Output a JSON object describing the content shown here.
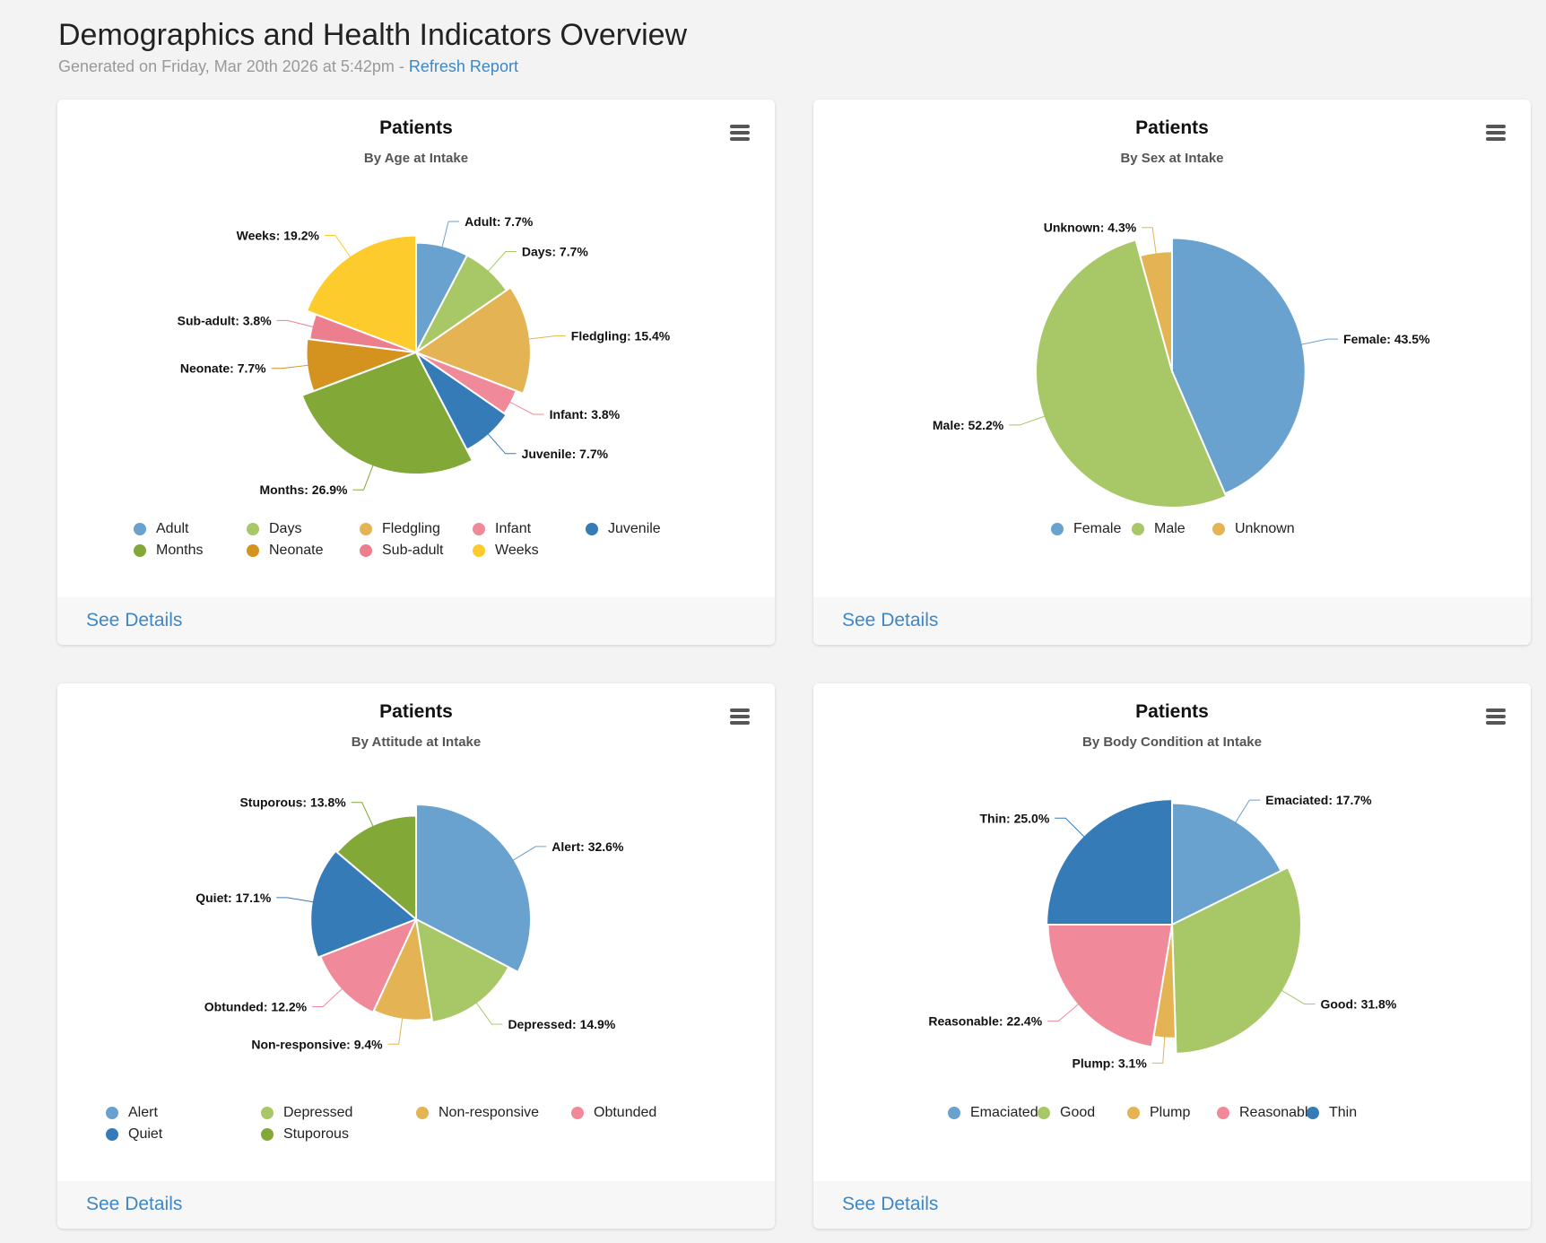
{
  "header": {
    "title": "Demographics and Health Indicators Overview",
    "generated": "Generated on Friday, Mar 20th 2026 at 5:42pm - ",
    "refresh_label": "Refresh Report"
  },
  "footer_link": "See Details",
  "chart_data": [
    {
      "type": "pie",
      "title": "Patients",
      "subtitle": "By Age at Intake",
      "legend_columns": 5,
      "legend_col_width": 126,
      "categories": [
        "Adult",
        "Days",
        "Fledgling",
        "Infant",
        "Juvenile",
        "Months",
        "Neonate",
        "Sub-adult",
        "Weeks"
      ],
      "values": [
        7.7,
        7.7,
        15.4,
        3.8,
        7.7,
        26.9,
        7.7,
        3.8,
        19.2
      ],
      "colors": [
        "#69a1cf",
        "#a8c766",
        "#e4b353",
        "#f08a9b",
        "#357bb7",
        "#82a838",
        "#d4921f",
        "#ec7f8e",
        "#fdcb2c"
      ]
    },
    {
      "type": "pie",
      "title": "Patients",
      "subtitle": "By Sex at Intake",
      "legend_columns": 3,
      "legend_col_width": 90,
      "categories": [
        "Female",
        "Male",
        "Unknown"
      ],
      "values": [
        43.5,
        52.2,
        4.3
      ],
      "colors": [
        "#69a1cf",
        "#a8c766",
        "#e4b353"
      ]
    },
    {
      "type": "pie",
      "title": "Patients",
      "subtitle": "By Attitude at Intake",
      "legend_columns": 4,
      "legend_col_width": 173,
      "categories": [
        "Alert",
        "Depressed",
        "Non-responsive",
        "Obtunded",
        "Quiet",
        "Stuporous"
      ],
      "values": [
        32.6,
        14.9,
        9.4,
        12.2,
        17.1,
        13.8
      ],
      "colors": [
        "#69a1cf",
        "#a8c766",
        "#e4b353",
        "#f08a9b",
        "#357bb7",
        "#82a838"
      ]
    },
    {
      "type": "pie",
      "title": "Patients",
      "subtitle": "By Body Condition at Intake",
      "legend_columns": 5,
      "legend_col_width": 100,
      "categories": [
        "Emaciated",
        "Good",
        "Plump",
        "Reasonable",
        "Thin"
      ],
      "values": [
        17.7,
        31.8,
        3.1,
        22.4,
        25.0
      ],
      "colors": [
        "#69a1cf",
        "#a8c766",
        "#e4b353",
        "#f08a9b",
        "#357bb7"
      ]
    }
  ]
}
